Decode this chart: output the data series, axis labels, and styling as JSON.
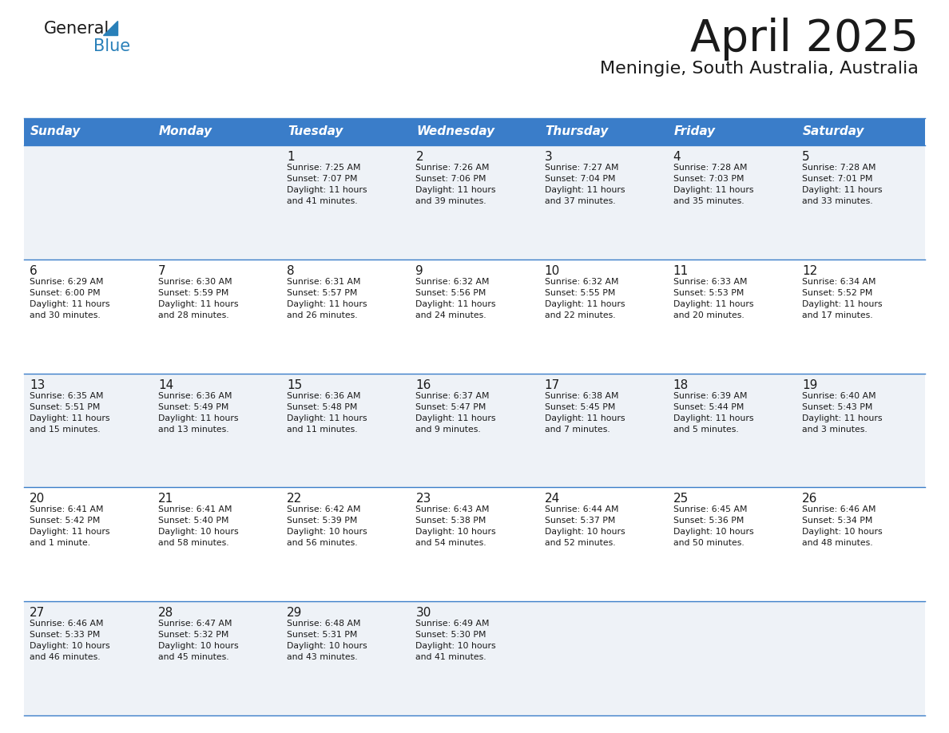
{
  "title": "April 2025",
  "subtitle": "Meningie, South Australia, Australia",
  "header_bg": "#3a7dc9",
  "header_text_color": "#ffffff",
  "row_bg_alt": "#eef2f7",
  "row_bg_white": "#ffffff",
  "border_color": "#3a7dc9",
  "text_color": "#1a1a1a",
  "day_names": [
    "Sunday",
    "Monday",
    "Tuesday",
    "Wednesday",
    "Thursday",
    "Friday",
    "Saturday"
  ],
  "weeks": [
    [
      {
        "day": "",
        "info": ""
      },
      {
        "day": "",
        "info": ""
      },
      {
        "day": "1",
        "info": "Sunrise: 7:25 AM\nSunset: 7:07 PM\nDaylight: 11 hours\nand 41 minutes."
      },
      {
        "day": "2",
        "info": "Sunrise: 7:26 AM\nSunset: 7:06 PM\nDaylight: 11 hours\nand 39 minutes."
      },
      {
        "day": "3",
        "info": "Sunrise: 7:27 AM\nSunset: 7:04 PM\nDaylight: 11 hours\nand 37 minutes."
      },
      {
        "day": "4",
        "info": "Sunrise: 7:28 AM\nSunset: 7:03 PM\nDaylight: 11 hours\nand 35 minutes."
      },
      {
        "day": "5",
        "info": "Sunrise: 7:28 AM\nSunset: 7:01 PM\nDaylight: 11 hours\nand 33 minutes."
      }
    ],
    [
      {
        "day": "6",
        "info": "Sunrise: 6:29 AM\nSunset: 6:00 PM\nDaylight: 11 hours\nand 30 minutes."
      },
      {
        "day": "7",
        "info": "Sunrise: 6:30 AM\nSunset: 5:59 PM\nDaylight: 11 hours\nand 28 minutes."
      },
      {
        "day": "8",
        "info": "Sunrise: 6:31 AM\nSunset: 5:57 PM\nDaylight: 11 hours\nand 26 minutes."
      },
      {
        "day": "9",
        "info": "Sunrise: 6:32 AM\nSunset: 5:56 PM\nDaylight: 11 hours\nand 24 minutes."
      },
      {
        "day": "10",
        "info": "Sunrise: 6:32 AM\nSunset: 5:55 PM\nDaylight: 11 hours\nand 22 minutes."
      },
      {
        "day": "11",
        "info": "Sunrise: 6:33 AM\nSunset: 5:53 PM\nDaylight: 11 hours\nand 20 minutes."
      },
      {
        "day": "12",
        "info": "Sunrise: 6:34 AM\nSunset: 5:52 PM\nDaylight: 11 hours\nand 17 minutes."
      }
    ],
    [
      {
        "day": "13",
        "info": "Sunrise: 6:35 AM\nSunset: 5:51 PM\nDaylight: 11 hours\nand 15 minutes."
      },
      {
        "day": "14",
        "info": "Sunrise: 6:36 AM\nSunset: 5:49 PM\nDaylight: 11 hours\nand 13 minutes."
      },
      {
        "day": "15",
        "info": "Sunrise: 6:36 AM\nSunset: 5:48 PM\nDaylight: 11 hours\nand 11 minutes."
      },
      {
        "day": "16",
        "info": "Sunrise: 6:37 AM\nSunset: 5:47 PM\nDaylight: 11 hours\nand 9 minutes."
      },
      {
        "day": "17",
        "info": "Sunrise: 6:38 AM\nSunset: 5:45 PM\nDaylight: 11 hours\nand 7 minutes."
      },
      {
        "day": "18",
        "info": "Sunrise: 6:39 AM\nSunset: 5:44 PM\nDaylight: 11 hours\nand 5 minutes."
      },
      {
        "day": "19",
        "info": "Sunrise: 6:40 AM\nSunset: 5:43 PM\nDaylight: 11 hours\nand 3 minutes."
      }
    ],
    [
      {
        "day": "20",
        "info": "Sunrise: 6:41 AM\nSunset: 5:42 PM\nDaylight: 11 hours\nand 1 minute."
      },
      {
        "day": "21",
        "info": "Sunrise: 6:41 AM\nSunset: 5:40 PM\nDaylight: 10 hours\nand 58 minutes."
      },
      {
        "day": "22",
        "info": "Sunrise: 6:42 AM\nSunset: 5:39 PM\nDaylight: 10 hours\nand 56 minutes."
      },
      {
        "day": "23",
        "info": "Sunrise: 6:43 AM\nSunset: 5:38 PM\nDaylight: 10 hours\nand 54 minutes."
      },
      {
        "day": "24",
        "info": "Sunrise: 6:44 AM\nSunset: 5:37 PM\nDaylight: 10 hours\nand 52 minutes."
      },
      {
        "day": "25",
        "info": "Sunrise: 6:45 AM\nSunset: 5:36 PM\nDaylight: 10 hours\nand 50 minutes."
      },
      {
        "day": "26",
        "info": "Sunrise: 6:46 AM\nSunset: 5:34 PM\nDaylight: 10 hours\nand 48 minutes."
      }
    ],
    [
      {
        "day": "27",
        "info": "Sunrise: 6:46 AM\nSunset: 5:33 PM\nDaylight: 10 hours\nand 46 minutes."
      },
      {
        "day": "28",
        "info": "Sunrise: 6:47 AM\nSunset: 5:32 PM\nDaylight: 10 hours\nand 45 minutes."
      },
      {
        "day": "29",
        "info": "Sunrise: 6:48 AM\nSunset: 5:31 PM\nDaylight: 10 hours\nand 43 minutes."
      },
      {
        "day": "30",
        "info": "Sunrise: 6:49 AM\nSunset: 5:30 PM\nDaylight: 10 hours\nand 41 minutes."
      },
      {
        "day": "",
        "info": ""
      },
      {
        "day": "",
        "info": ""
      },
      {
        "day": "",
        "info": ""
      }
    ]
  ]
}
